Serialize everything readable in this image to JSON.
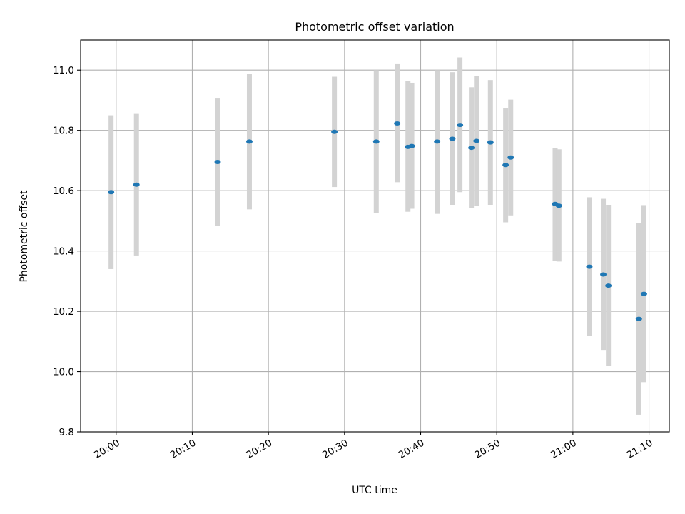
{
  "chart_data": {
    "type": "scatter",
    "title": "Photometric offset variation",
    "xlabel": "UTC time",
    "ylabel": "Photometric offset",
    "grid": true,
    "ylim": [
      9.8,
      11.1
    ],
    "xlim": [
      "19:55:20",
      "21:12:40"
    ],
    "y_ticks": [
      9.8,
      10.0,
      10.2,
      10.4,
      10.6,
      10.8,
      11.0
    ],
    "y_tick_labels": [
      "9.8",
      "10.0",
      "10.2",
      "10.4",
      "10.6",
      "10.8",
      "11.0"
    ],
    "x_ticks": [
      "20:00",
      "20:10",
      "20:20",
      "20:30",
      "20:40",
      "20:50",
      "21:00",
      "21:10"
    ],
    "x_tick_labels": [
      "20:00",
      "20:10",
      "20:20",
      "20:30",
      "20:40",
      "20:50",
      "21:00",
      "21:10"
    ],
    "marker_color": "#1f77b4",
    "errorbar_color": "#d3d3d3",
    "points": [
      {
        "t": "19:59:20",
        "y": 10.595,
        "ylow": 10.34,
        "yhigh": 10.85
      },
      {
        "t": "20:02:40",
        "y": 10.62,
        "ylow": 10.385,
        "yhigh": 10.857
      },
      {
        "t": "20:13:20",
        "y": 10.695,
        "ylow": 10.483,
        "yhigh": 10.908
      },
      {
        "t": "20:17:30",
        "y": 10.763,
        "ylow": 10.538,
        "yhigh": 10.988
      },
      {
        "t": "20:28:40",
        "y": 10.795,
        "ylow": 10.612,
        "yhigh": 10.978
      },
      {
        "t": "20:34:10",
        "y": 10.763,
        "ylow": 10.525,
        "yhigh": 11.0
      },
      {
        "t": "20:36:55",
        "y": 10.823,
        "ylow": 10.628,
        "yhigh": 11.022
      },
      {
        "t": "20:38:20",
        "y": 10.745,
        "ylow": 10.53,
        "yhigh": 10.963
      },
      {
        "t": "20:38:50",
        "y": 10.748,
        "ylow": 10.54,
        "yhigh": 10.958
      },
      {
        "t": "20:42:10",
        "y": 10.763,
        "ylow": 10.523,
        "yhigh": 11.0
      },
      {
        "t": "20:44:10",
        "y": 10.772,
        "ylow": 10.553,
        "yhigh": 10.993
      },
      {
        "t": "20:45:10",
        "y": 10.818,
        "ylow": 10.595,
        "yhigh": 11.042
      },
      {
        "t": "20:46:40",
        "y": 10.742,
        "ylow": 10.542,
        "yhigh": 10.943
      },
      {
        "t": "20:47:20",
        "y": 10.765,
        "ylow": 10.55,
        "yhigh": 10.981
      },
      {
        "t": "20:49:10",
        "y": 10.76,
        "ylow": 10.553,
        "yhigh": 10.967
      },
      {
        "t": "20:51:10",
        "y": 10.685,
        "ylow": 10.495,
        "yhigh": 10.875
      },
      {
        "t": "20:51:50",
        "y": 10.71,
        "ylow": 10.518,
        "yhigh": 10.902
      },
      {
        "t": "20:57:40",
        "y": 10.556,
        "ylow": 10.368,
        "yhigh": 10.742
      },
      {
        "t": "20:58:10",
        "y": 10.55,
        "ylow": 10.365,
        "yhigh": 10.737
      },
      {
        "t": "21:02:10",
        "y": 10.348,
        "ylow": 10.118,
        "yhigh": 10.578
      },
      {
        "t": "21:04:00",
        "y": 10.322,
        "ylow": 10.072,
        "yhigh": 10.573
      },
      {
        "t": "21:04:40",
        "y": 10.285,
        "ylow": 10.02,
        "yhigh": 10.553
      },
      {
        "t": "21:08:40",
        "y": 10.175,
        "ylow": 9.857,
        "yhigh": 10.493
      },
      {
        "t": "21:09:20",
        "y": 10.258,
        "ylow": 9.965,
        "yhigh": 10.552
      }
    ]
  }
}
